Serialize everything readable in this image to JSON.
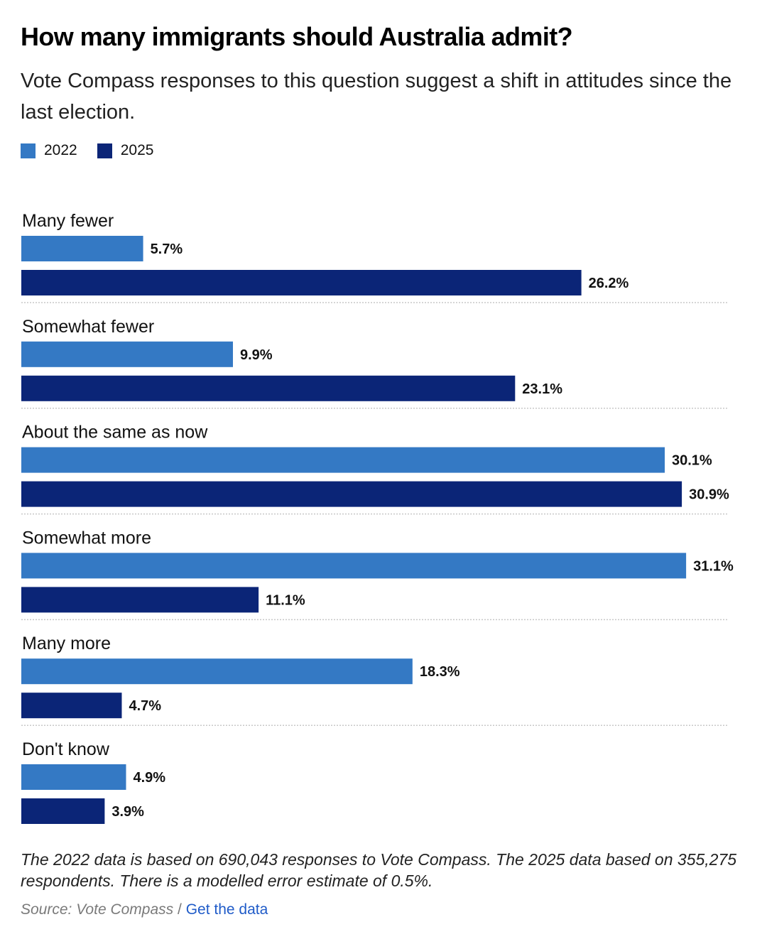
{
  "title": "How many immigrants should Australia admit?",
  "subtitle": "Vote Compass responses to this question suggest a shift in attitudes since the last election.",
  "colors": {
    "series_2022": "#3479c4",
    "series_2025": "#0b2577",
    "divider": "#c8c8c8",
    "link": "#1f5bc8"
  },
  "legend": [
    {
      "label": "2022",
      "color": "#3479c4"
    },
    {
      "label": "2025",
      "color": "#0b2577"
    }
  ],
  "chart_data": {
    "type": "bar",
    "orientation": "horizontal",
    "title": "How many immigrants should Australia admit?",
    "unit": "%",
    "categories": [
      "Many fewer",
      "Somewhat fewer",
      "About the same as now",
      "Somewhat more",
      "Many more",
      "Don't know"
    ],
    "series": [
      {
        "name": "2022",
        "values": [
          5.7,
          9.9,
          30.1,
          31.1,
          18.3,
          4.9
        ],
        "labels": [
          "5.7%",
          "9.9%",
          "30.1%",
          "31.1%",
          "18.3%",
          "4.9%"
        ]
      },
      {
        "name": "2025",
        "values": [
          26.2,
          23.1,
          30.9,
          11.1,
          4.7,
          3.9
        ],
        "labels": [
          "26.2%",
          "23.1%",
          "30.9%",
          "11.1%",
          "4.7%",
          "3.9%"
        ]
      }
    ],
    "grid": false,
    "legend": "top-left"
  },
  "footnote": "The 2022 data is based on 690,043 responses to Vote Compass. The 2025 data based on 355,275 respondents. There is a modelled error estimate of 0.5%.",
  "source": {
    "text": "Source: Vote Compass",
    "separator": " / ",
    "link_label": "Get the data"
  }
}
